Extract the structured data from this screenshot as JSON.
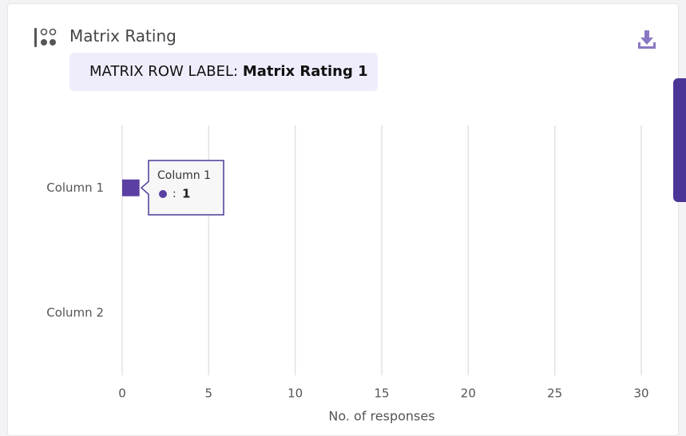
{
  "header": {
    "title": "Matrix Rating",
    "row_label_prefix": "MATRIX ROW LABEL:",
    "row_label": "Matrix Rating 1"
  },
  "chart_data": {
    "type": "bar",
    "orientation": "horizontal",
    "categories": [
      "Column 1",
      "Column 2"
    ],
    "values": [
      1,
      0
    ],
    "color": "#5b3fa3",
    "xlim": [
      0,
      30
    ],
    "xticks": [
      0,
      5,
      10,
      15,
      20,
      25,
      30
    ],
    "grid": true,
    "x_label": "No. of responses"
  },
  "tooltip": {
    "separator": ":"
  }
}
